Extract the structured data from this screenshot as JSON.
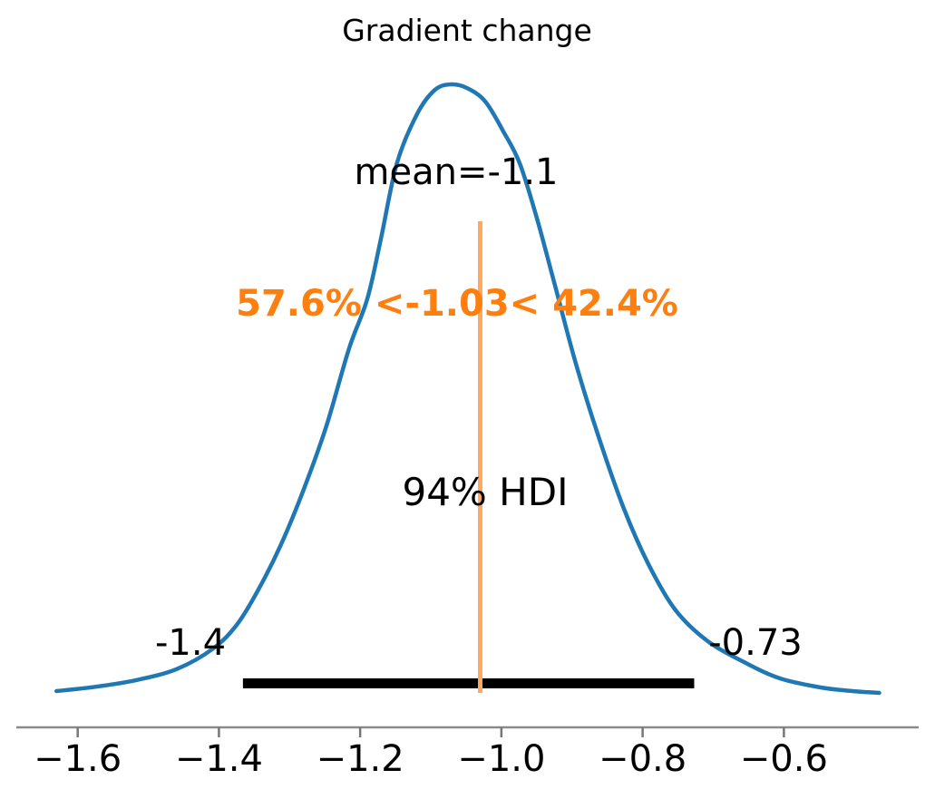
{
  "figure": {
    "background": "#ffffff"
  },
  "colors": {
    "curve": "#1f77b4",
    "ref_line": "#ffa95e",
    "ref_text": "#ff7f0e",
    "hdi_bar": "#000000",
    "axis": "#8a8a8a",
    "tick_mark": "#777777",
    "text": "#000000"
  },
  "chart_data": {
    "type": "line",
    "subtype": "kde-posterior",
    "title": "Gradient change",
    "annotations": {
      "mean_label": "mean=-1.1",
      "ref_label": "57.6% <-1.03< 42.4%",
      "hdi_label": "94% HDI",
      "hdi_lower_label": "-1.4",
      "hdi_upper_label": "-0.73"
    },
    "mean": -1.1,
    "ref_value": -1.03,
    "pct_below_ref": 57.6,
    "pct_above_ref": 42.4,
    "hdi_prob": 94,
    "hdi_lower": -1.366,
    "hdi_upper": -0.727,
    "xlim": [
      -1.71,
      -0.386
    ],
    "grid": false,
    "legend": "none",
    "x_ticks": [
      -1.6,
      -1.4,
      -1.2,
      -1.0,
      -0.8,
      -0.6
    ],
    "x_tick_labels": [
      "−1.6",
      "−1.4",
      "−1.2",
      "−1.0",
      "−0.8",
      "−0.6"
    ],
    "kde": {
      "x": [
        -1.63,
        -1.575,
        -1.517,
        -1.46,
        -1.408,
        -1.374,
        -1.344,
        -1.312,
        -1.28,
        -1.248,
        -1.216,
        -1.19,
        -1.171,
        -1.148,
        -1.119,
        -1.094,
        -1.071,
        -1.049,
        -1.023,
        -0.997,
        -0.974,
        -0.95,
        -0.924,
        -0.895,
        -0.863,
        -0.827,
        -0.792,
        -0.754,
        -0.709,
        -0.657,
        -0.606,
        -0.548,
        -0.503,
        -0.465
      ],
      "density": [
        0.003,
        0.01,
        0.021,
        0.039,
        0.073,
        0.113,
        0.17,
        0.244,
        0.334,
        0.438,
        0.565,
        0.647,
        0.744,
        0.87,
        0.952,
        0.991,
        1.0,
        0.994,
        0.972,
        0.922,
        0.87,
        0.781,
        0.669,
        0.543,
        0.423,
        0.304,
        0.212,
        0.137,
        0.086,
        0.051,
        0.024,
        0.009,
        0.003,
        0.0
      ]
    }
  }
}
